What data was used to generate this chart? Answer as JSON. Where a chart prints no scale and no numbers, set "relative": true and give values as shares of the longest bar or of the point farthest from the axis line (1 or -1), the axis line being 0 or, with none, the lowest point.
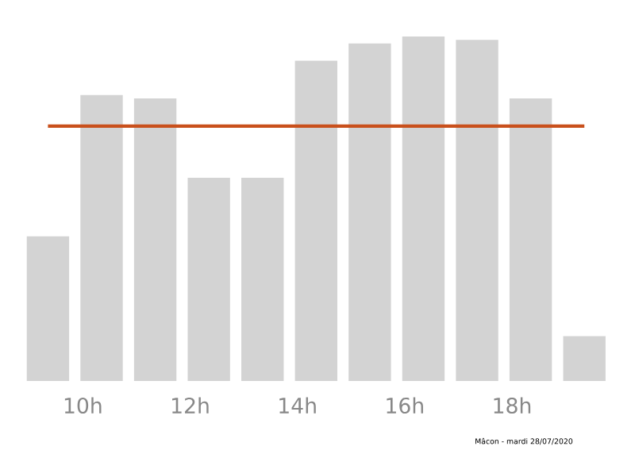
{
  "chart_data": {
    "type": "bar",
    "relative": true,
    "x": [
      9.35,
      10.35,
      11.35,
      12.35,
      13.35,
      14.35,
      15.35,
      16.35,
      17.35,
      18.35,
      19.35
    ],
    "values": [
      0.42,
      0.83,
      0.82,
      0.59,
      0.59,
      0.93,
      0.98,
      1,
      0.99,
      0.82,
      0.13
    ],
    "color": "#d3d3d3",
    "xlim": [
      8.9,
      19.85
    ],
    "xticks": [
      {
        "value": 10,
        "label": "10h"
      },
      {
        "value": 12,
        "label": "12h"
      },
      {
        "value": 14,
        "label": "14h"
      },
      {
        "value": 16,
        "label": "16h"
      },
      {
        "value": 18,
        "label": "18h"
      }
    ],
    "ref_lines": [
      {
        "axis": "y",
        "value": 0.74,
        "color": "#c9501c"
      }
    ],
    "annotations": [
      "Mâcon - mardi 28/07/2020"
    ]
  }
}
